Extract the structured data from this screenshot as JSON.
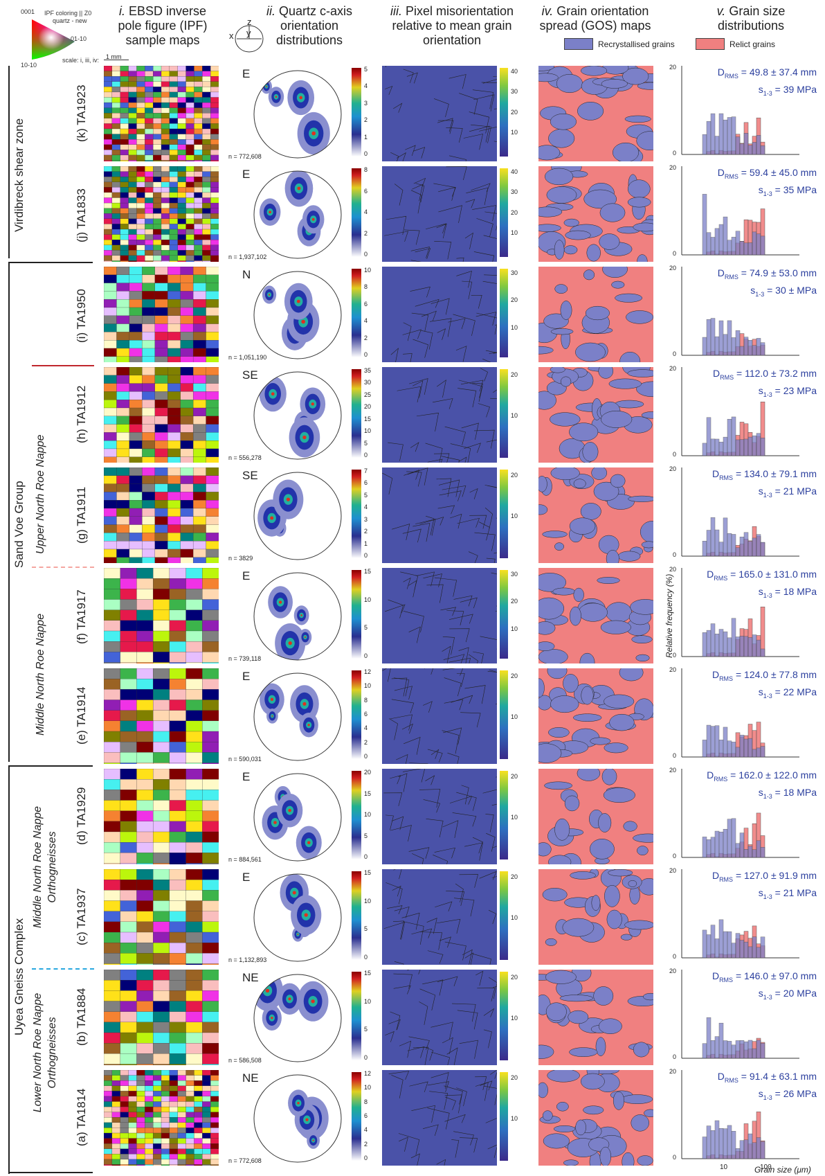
{
  "headers": [
    {
      "num": "i.",
      "text1": "EBSD inverse",
      "text2": "pole figure (IPF)",
      "text3": "sample maps"
    },
    {
      "num": "ii.",
      "text1": "Quartz c-axis",
      "text2": "orientation",
      "text3": "distributions"
    },
    {
      "num": "iii.",
      "text1": "Pixel misorientation",
      "text2": "relative to mean grain",
      "text3": "orientation"
    },
    {
      "num": "iv.",
      "text1": "Grain orientation",
      "text2": "spread (GOS) maps",
      "text3": ""
    },
    {
      "num": "v.",
      "text1": "Grain size",
      "text2": "distributions",
      "text3": ""
    }
  ],
  "ipf_key": {
    "t0001": "0001",
    "title": "IPF coloring || Z0",
    "sub": "quartz - new",
    "t0110": "01-10",
    "t1010": "10-10",
    "scale": "scale: i, iii, iv:",
    "scalebar": "1 mm"
  },
  "axes_key": {
    "z": "z",
    "x": "x",
    "y": "y"
  },
  "legend": {
    "recryst": "Recrystallised grains",
    "relict": "Relict grains",
    "recryst_color": "#7b80c8",
    "relict_color": "#f08080"
  },
  "groups": {
    "virdibreck": "Virdibreck shear zone",
    "sandvoe": "Sand Voe Group",
    "uyea": "Uyea Gneiss Complex"
  },
  "nappes": {
    "upper": "Upper North Roe Nappe",
    "middle": "Middle North Roe Nappe",
    "middle_ortho1": "Middle North Roe Nappe",
    "middle_ortho2": "Orthogneisses",
    "lower1": "Lower North Roe Nappe",
    "lower2": "Orthogneisses"
  },
  "axis": {
    "ylabel": "Relative frequency (%)",
    "xlabel": "Grain size (μm)",
    "x10": "10",
    "x100": "100",
    "y20": "20",
    "y0": "0"
  },
  "samples": [
    {
      "label": "(k)  TA1923",
      "dir": "E",
      "n": "n = 772,608",
      "cbmax": "5",
      "cb": [
        "5",
        "4",
        "3",
        "2",
        "1",
        "0"
      ],
      "cb2": [
        "40",
        "30",
        "20",
        "10"
      ],
      "d": "49.8 ± 37.4 mm",
      "s": "39 MPa"
    },
    {
      "label": "(j)  TA1833",
      "dir": "E",
      "n": "n = 1,937,102",
      "cb": [
        "8",
        "6",
        "4",
        "2",
        "0"
      ],
      "cb2": [
        "40",
        "30",
        "20",
        "10"
      ],
      "d": "59.4 ± 45.0 mm",
      "s": "35 MPa"
    },
    {
      "label": "(i)  TA1950",
      "dir": "N",
      "n": "n = 1,051,190",
      "cb": [
        "10",
        "8",
        "6",
        "4",
        "2",
        "0"
      ],
      "cb2": [
        "30",
        "20",
        "10"
      ],
      "d": "74.9 ± 53.0 mm",
      "s": "30 ±  MPa"
    },
    {
      "label": "(h)  TA1912",
      "dir": "SE",
      "n": "n = 556,278",
      "cb": [
        "35",
        "30",
        "25",
        "20",
        "15",
        "10",
        "5",
        "0"
      ],
      "cb2": [
        "20",
        "10"
      ],
      "d": "112.0 ± 73.2 mm",
      "s": "23 MPa"
    },
    {
      "label": "(g)  TA1911",
      "dir": "SE",
      "n": "n = 3829",
      "cb": [
        "7",
        "6",
        "5",
        "4",
        "3",
        "2",
        "1",
        "0"
      ],
      "cb2": [
        "20",
        "10"
      ],
      "d": "134.0 ± 79.1 mm",
      "s": "21 MPa"
    },
    {
      "label": "(f)  TA1917",
      "dir": "E",
      "n": "n = 739,118",
      "cb": [
        "15",
        "10",
        "5",
        "0"
      ],
      "cb2": [
        "30",
        "20",
        "10"
      ],
      "d": "165.0 ± 131.0 mm",
      "s": "18 MPa"
    },
    {
      "label": "(e)  TA1914",
      "dir": "E",
      "n": "n = 590,031",
      "cb": [
        "12",
        "10",
        "8",
        "6",
        "4",
        "2",
        "0"
      ],
      "cb2": [
        "20",
        "10"
      ],
      "d": "124.0 ± 77.8 mm",
      "s": "22 MPa"
    },
    {
      "label": "(d)  TA1929",
      "dir": "E",
      "n": "n = 884,561",
      "cb": [
        "20",
        "15",
        "10",
        "5",
        "0"
      ],
      "cb2": [
        "20",
        "10"
      ],
      "d": "162.0 ± 122.0 mm",
      "s": "18 MPa"
    },
    {
      "label": "(c)  TA1937",
      "dir": "E",
      "n": "n = 1,132,893",
      "cb": [
        "15",
        "10",
        "5",
        "0"
      ],
      "cb2": [
        "20",
        "10"
      ],
      "d": "127.0 ± 91.9 mm",
      "s": "21 MPa"
    },
    {
      "label": "(b)  TA1884",
      "dir": "NE",
      "n": "n = 586,508",
      "cb": [
        "15",
        "10",
        "5",
        "0"
      ],
      "cb2": [
        "20",
        "10"
      ],
      "d": "146.0 ± 97.0 mm",
      "s": "20 MPa"
    },
    {
      "label": "(a)  TA1814",
      "dir": "NE",
      "n": "n = 772,608",
      "cb": [
        "12",
        "10",
        "8",
        "6",
        "4",
        "2",
        "0"
      ],
      "cb2": [
        "20",
        "10"
      ],
      "d": "91.4 ± 63.1 mm",
      "s": "26 MPa"
    }
  ],
  "drms_text": "D",
  "drms_sub": "RMS",
  "s_text": "s",
  "s_sub": "1-3"
}
